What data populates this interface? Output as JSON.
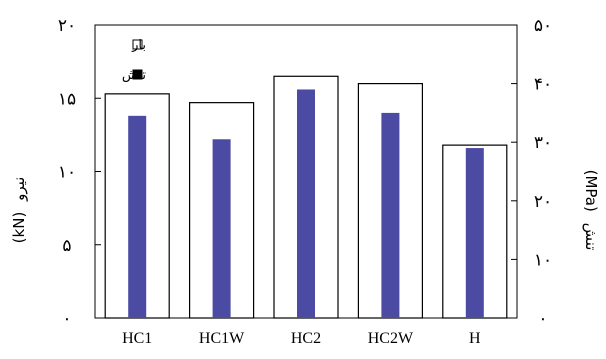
{
  "chart_data": {
    "type": "bar",
    "categories": [
      "HC1",
      "HC1W",
      "HC2",
      "HC2W",
      "H"
    ],
    "series": [
      {
        "name": "بار",
        "axis": "left",
        "values": [
          15.3,
          14.7,
          16.5,
          16.0,
          11.8
        ],
        "style": "outline",
        "color": "#000000"
      },
      {
        "name": "تنش",
        "axis": "right",
        "values": [
          34.5,
          30.5,
          39.0,
          35.0,
          29.0
        ],
        "style": "filled",
        "color": "#4b4ba3"
      }
    ],
    "left_axis": {
      "label_unit": "(kN)",
      "label_word": "نیرو",
      "ylim": [
        0,
        20
      ],
      "tick_labels": [
        "۰",
        "۵",
        "۱۰",
        "۱۵",
        "۲۰"
      ]
    },
    "right_axis": {
      "label_unit": "(MPa)",
      "label_word": "تنش",
      "ylim": [
        0,
        50
      ],
      "tick_labels": [
        "۰",
        "۱۰",
        "۲۰",
        "۳۰",
        "۴۰",
        "۵۰"
      ]
    },
    "legend_position": "top-left",
    "grid": false
  }
}
